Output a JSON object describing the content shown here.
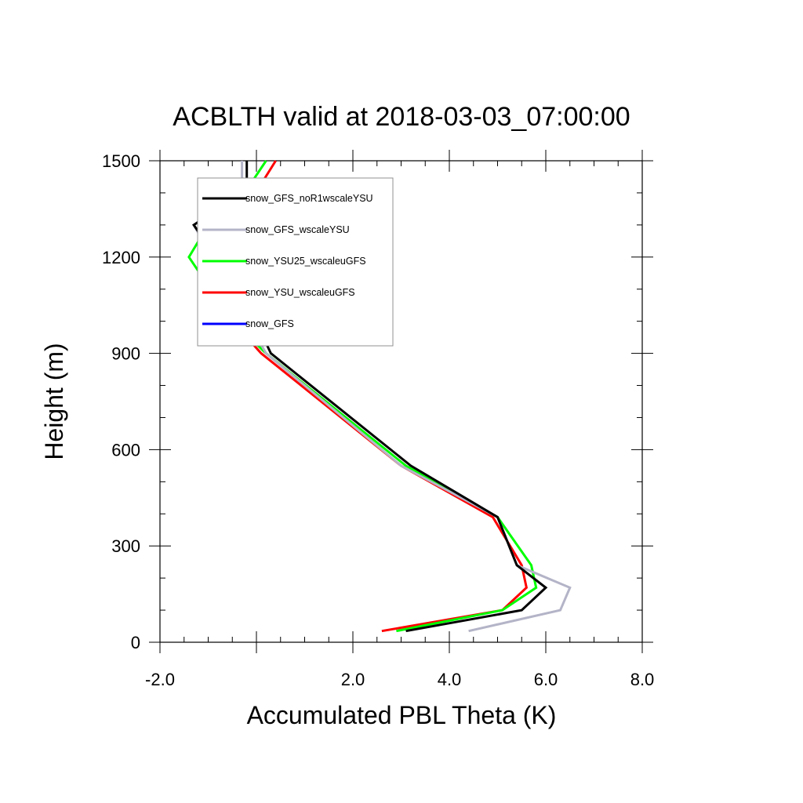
{
  "chart_data": {
    "type": "line",
    "title": "ACBLTH valid at 2018-03-03_07:00:00",
    "xlabel": "Accumulated PBL Theta (K)",
    "ylabel": "Height (m)",
    "xlim": [
      -2.0,
      8.0
    ],
    "ylim": [
      0,
      1500
    ],
    "xticks": [
      -2.0,
      2.0,
      4.0,
      6.0,
      8.0
    ],
    "xtick_labels": [
      "-2.0",
      "2.0",
      "4.0",
      "6.0",
      "8.0"
    ],
    "ytick_labels": [
      "0",
      "300",
      "600",
      "900",
      "1200",
      "1500"
    ],
    "yticks": [
      0,
      300,
      600,
      900,
      1200,
      1500
    ],
    "legend_position": "top-left",
    "grid": false,
    "series": [
      {
        "name": "snow_GFS_noR1wscaleYSU",
        "color": "#000000",
        "x": [
          3.1,
          5.5,
          6.0,
          5.4,
          5.0,
          3.2,
          0.3,
          -0.2,
          -1.3,
          -0.2,
          -0.2
        ],
        "y": [
          35,
          100,
          170,
          240,
          390,
          550,
          900,
          1060,
          1300,
          1410,
          1500
        ]
      },
      {
        "name": "snow_GFS_wscaleYSU",
        "color": "#b4b4c8",
        "x": [
          4.4,
          6.3,
          6.5,
          5.4,
          5.0,
          3.0,
          0.2,
          -0.4,
          -1.3,
          -0.3,
          -0.3
        ],
        "y": [
          35,
          100,
          170,
          240,
          390,
          550,
          900,
          1060,
          1300,
          1410,
          1500
        ]
      },
      {
        "name": "snow_YSU25_wscaleuGFS",
        "color": "#00ff00",
        "x": [
          2.9,
          5.1,
          5.8,
          5.7,
          5.0,
          3.1,
          0.2,
          -0.5,
          -1.4,
          -1.0,
          -0.2,
          0.2
        ],
        "y": [
          35,
          100,
          170,
          240,
          390,
          550,
          900,
          1000,
          1200,
          1300,
          1410,
          1500
        ]
      },
      {
        "name": "snow_YSU_wscaleuGFS",
        "color": "#ff0000",
        "x": [
          2.6,
          5.1,
          5.6,
          5.5,
          4.9,
          3.0,
          0.1,
          -0.5,
          -0.9,
          -0.6,
          -0.1,
          0.4
        ],
        "y": [
          35,
          100,
          170,
          240,
          390,
          550,
          900,
          1000,
          1100,
          1200,
          1380,
          1500
        ]
      },
      {
        "name": "snow_GFS",
        "color": "#0000ff",
        "x": [],
        "y": []
      }
    ]
  }
}
